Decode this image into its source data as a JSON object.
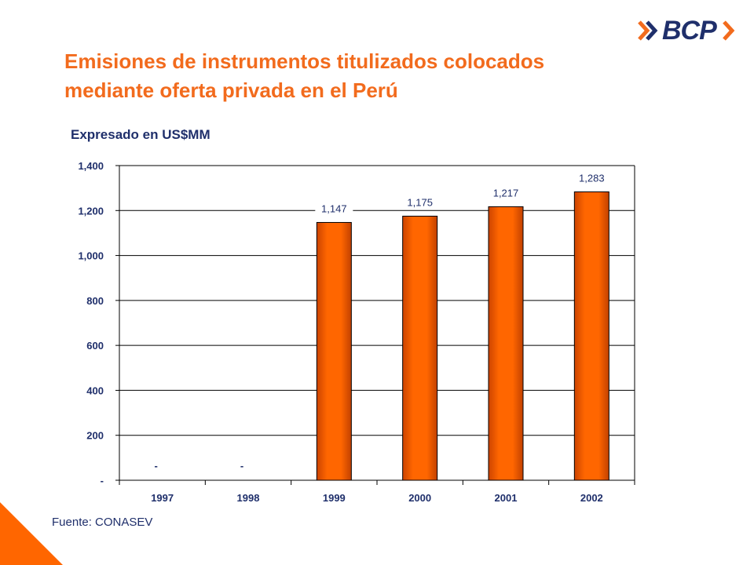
{
  "header": {
    "title_line1": "Emisiones de instrumentos titulizados colocados",
    "title_line2": "mediante oferta privada en el Perú",
    "subtitle": "Expresado en US$MM",
    "logo_text": "BCP"
  },
  "footer": {
    "source": "Fuente: CONASEV"
  },
  "colors": {
    "accent": "#f26b1d",
    "bar": "#ff6600",
    "navy": "#1f2f6b"
  },
  "chart_data": {
    "type": "bar",
    "categories": [
      "1997",
      "1998",
      "1999",
      "2000",
      "2001",
      "2002"
    ],
    "values": [
      0,
      0,
      1147,
      1175,
      1217,
      1283
    ],
    "data_labels": [
      "-",
      "-",
      "1,147",
      "1,175",
      "1,217",
      "1,283"
    ],
    "ylim": [
      0,
      1400
    ],
    "yticks": [
      0,
      200,
      400,
      600,
      800,
      1000,
      1200,
      1400
    ],
    "ytick_labels": [
      "-",
      "200",
      "400",
      "600",
      "800",
      "1,000",
      "1,200",
      "1,400"
    ],
    "grid": true,
    "xlabel": "",
    "ylabel": ""
  }
}
